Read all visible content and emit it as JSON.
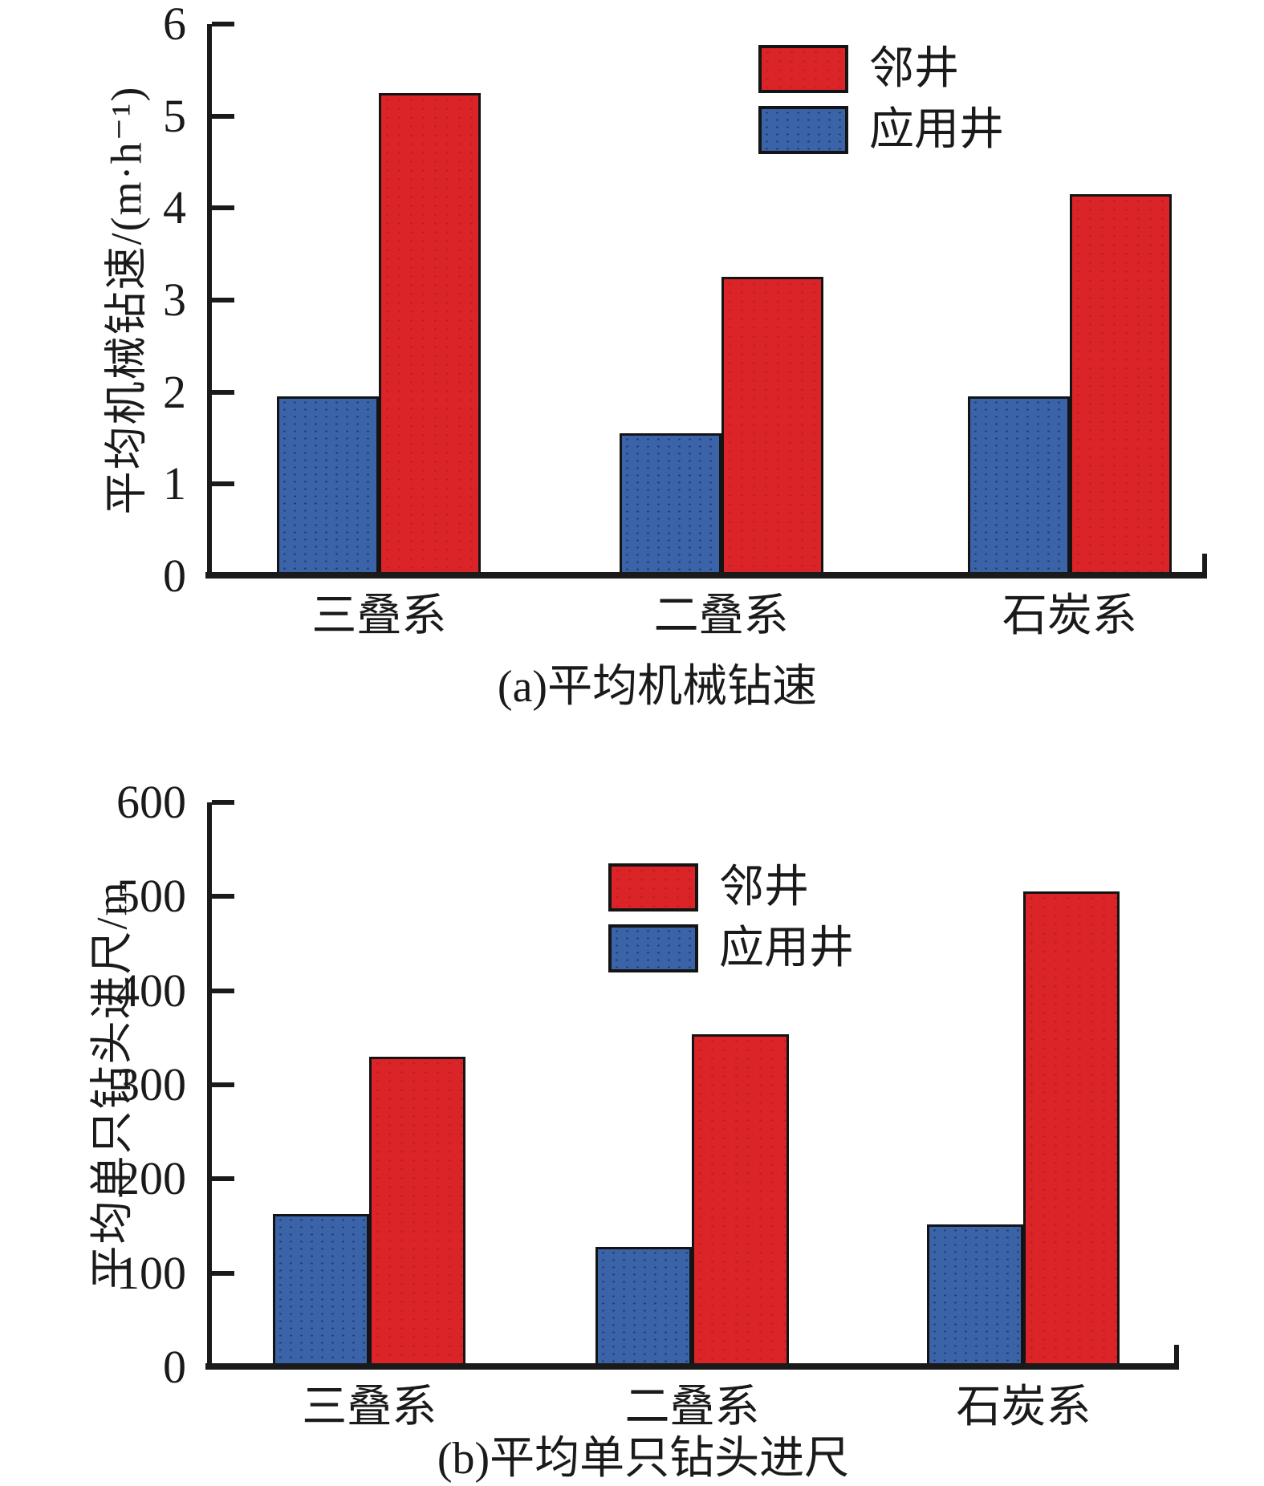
{
  "figure": {
    "background_color": "#ffffff",
    "axis_color": "#1a1a1a",
    "series_colors": {
      "邻井": "#da2428",
      "应用井": "#3a63a8"
    }
  },
  "chart_data": [
    {
      "type": "bar",
      "title": "(a)平均机械钻速",
      "ylabel": "平均机械钻速/(m·h⁻¹)",
      "xlabel": "",
      "categories": [
        "三叠系",
        "二叠系",
        "石炭系"
      ],
      "series": [
        {
          "name": "邻井",
          "color": "#da2428",
          "values": [
            5.25,
            3.25,
            4.15
          ]
        },
        {
          "name": "应用井",
          "color": "#3a63a8",
          "values": [
            1.95,
            1.55,
            1.95
          ]
        }
      ],
      "ylim": [
        0,
        6
      ],
      "yticks": [
        0,
        1,
        2,
        3,
        4,
        5,
        6
      ],
      "grid": false,
      "legend_position": "upper-right-inside"
    },
    {
      "type": "bar",
      "title": "(b)平均单只钻头进尺",
      "ylabel": "平均单只钻头进尺/m",
      "xlabel": "",
      "categories": [
        "三叠系",
        "二叠系",
        "石炭系"
      ],
      "series": [
        {
          "name": "邻井",
          "color": "#da2428",
          "values": [
            330,
            354,
            505
          ]
        },
        {
          "name": "应用井",
          "color": "#3a63a8",
          "values": [
            163,
            128,
            152
          ]
        }
      ],
      "ylim": [
        0,
        600
      ],
      "yticks": [
        0,
        100,
        200,
        300,
        400,
        500,
        600
      ],
      "grid": false,
      "legend_position": "upper-center-inside"
    }
  ]
}
